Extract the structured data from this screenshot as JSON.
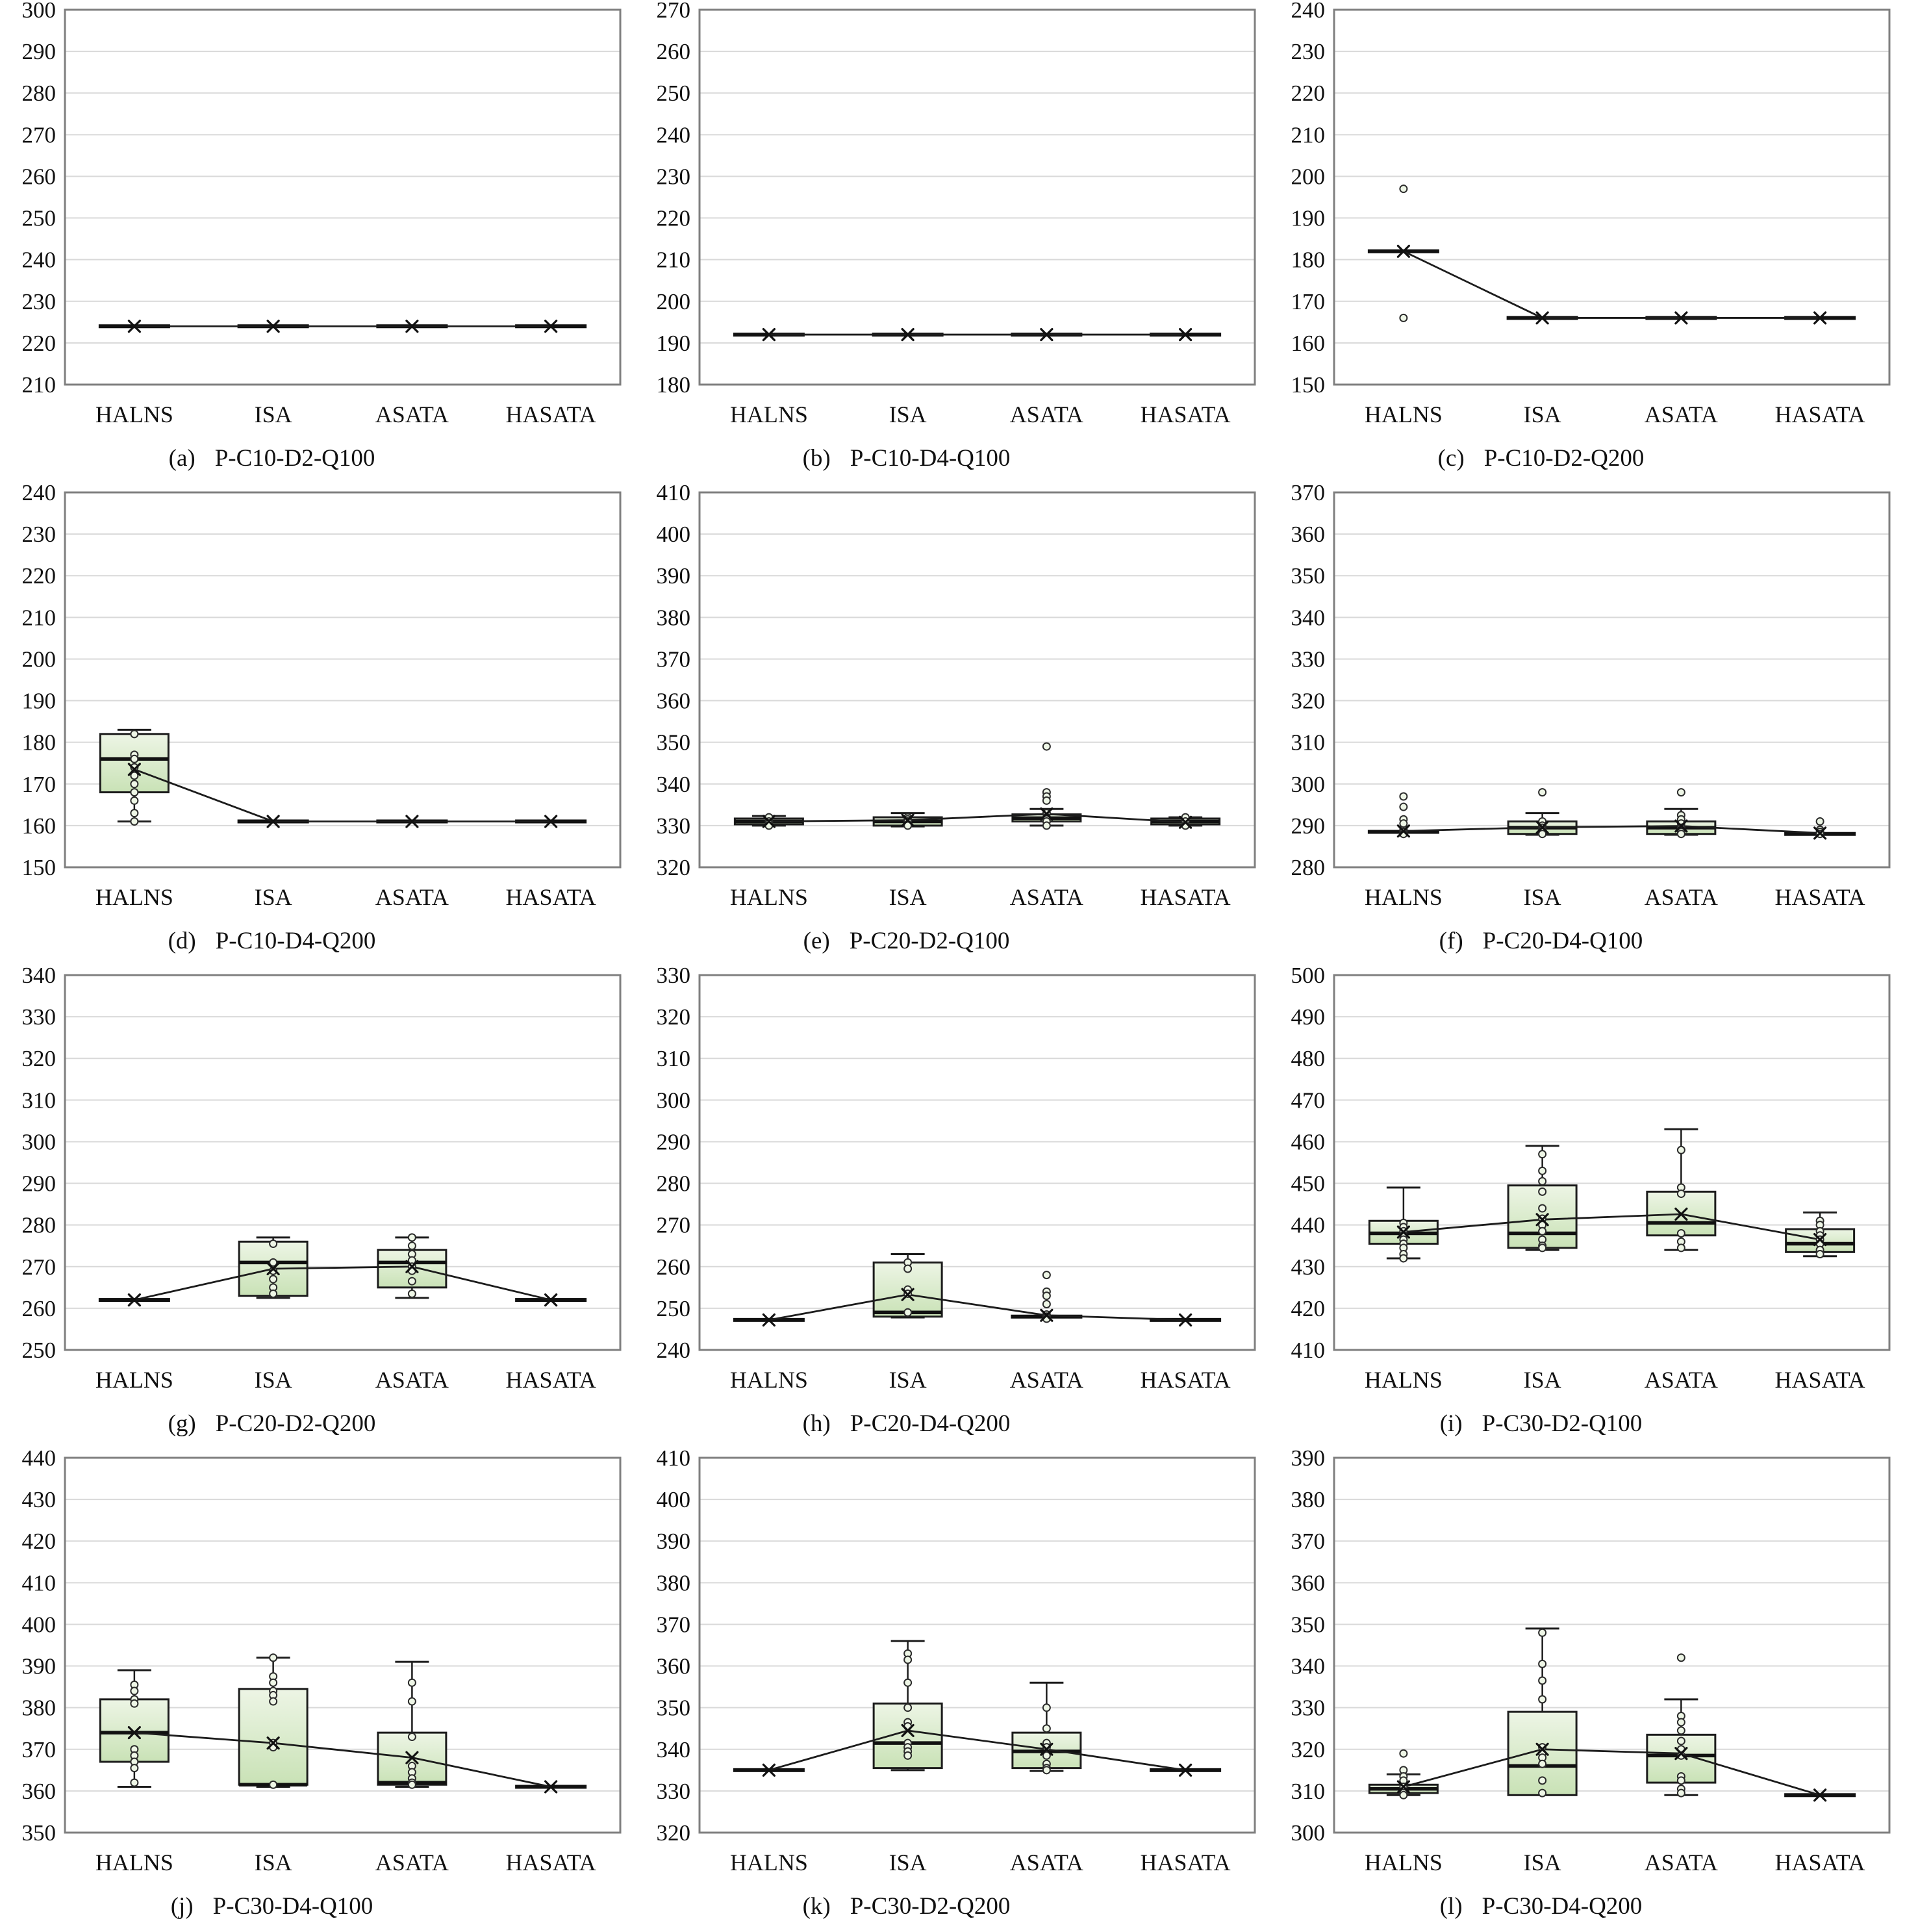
{
  "style": {
    "background": "#ffffff",
    "box_fill_top": "#edf5e5",
    "box_fill_bottom": "#c9e2b6",
    "box_stroke": "#1c1c1c",
    "median_color": "#111111",
    "grid_color": "#d9d9d9",
    "border_color": "#7f7f7f",
    "point_fill": "#eef6e6",
    "point_stroke": "#2b2b2b",
    "mean_line_color": "#1c1c1c",
    "text_color": "#111111"
  },
  "chart_data": [
    {
      "type": "boxplot",
      "id": "a",
      "caption_prefix": "(a)",
      "caption": "P-C10-D2-Q100",
      "ylim": [
        210,
        300
      ],
      "ytick_step": 10,
      "grid": true,
      "categories": [
        "HALNS",
        "ISA",
        "ASATA",
        "HASATA"
      ],
      "boxes": [
        {
          "type": "flat",
          "value": 224,
          "mean": 224
        },
        {
          "type": "flat",
          "value": 224,
          "mean": 224
        },
        {
          "type": "flat",
          "value": 224,
          "mean": 224
        },
        {
          "type": "flat",
          "value": 224,
          "mean": 224
        }
      ]
    },
    {
      "type": "boxplot",
      "id": "b",
      "caption_prefix": "(b)",
      "caption": "P-C10-D4-Q100",
      "ylim": [
        180,
        270
      ],
      "ytick_step": 10,
      "grid": true,
      "categories": [
        "HALNS",
        "ISA",
        "ASATA",
        "HASATA"
      ],
      "boxes": [
        {
          "type": "flat",
          "value": 192,
          "mean": 192
        },
        {
          "type": "flat",
          "value": 192,
          "mean": 192
        },
        {
          "type": "flat",
          "value": 192,
          "mean": 192
        },
        {
          "type": "flat",
          "value": 192,
          "mean": 192
        }
      ]
    },
    {
      "type": "boxplot",
      "id": "c",
      "caption_prefix": "(c)",
      "caption": "P-C10-D2-Q200",
      "ylim": [
        150,
        240
      ],
      "ytick_step": 10,
      "grid": true,
      "categories": [
        "HALNS",
        "ISA",
        "ASATA",
        "HASATA"
      ],
      "boxes": [
        {
          "type": "flat",
          "value": 182,
          "mean": 182,
          "outliers": [
            197,
            166
          ]
        },
        {
          "type": "flat",
          "value": 166,
          "mean": 166
        },
        {
          "type": "flat",
          "value": 166,
          "mean": 166
        },
        {
          "type": "flat",
          "value": 166,
          "mean": 166
        }
      ]
    },
    {
      "type": "boxplot",
      "id": "d",
      "caption_prefix": "(d)",
      "caption": "P-C10-D4-Q200",
      "ylim": [
        150,
        240
      ],
      "ytick_step": 10,
      "grid": true,
      "categories": [
        "HALNS",
        "ISA",
        "ASATA",
        "HASATA"
      ],
      "boxes": [
        {
          "type": "box",
          "q1": 168,
          "median": 176,
          "q3": 182,
          "whisker_low": 161,
          "whisker_high": 183,
          "mean": 173.5,
          "points": [
            182,
            177,
            176,
            174,
            172,
            170,
            168,
            166,
            163,
            161
          ]
        },
        {
          "type": "flat",
          "value": 161,
          "mean": 161
        },
        {
          "type": "flat",
          "value": 161,
          "mean": 161
        },
        {
          "type": "flat",
          "value": 161,
          "mean": 161
        }
      ]
    },
    {
      "type": "boxplot",
      "id": "e",
      "caption_prefix": "(e)",
      "caption": "P-C20-D2-Q100",
      "ylim": [
        320,
        410
      ],
      "ytick_step": 10,
      "grid": true,
      "categories": [
        "HALNS",
        "ISA",
        "ASATA",
        "HASATA"
      ],
      "boxes": [
        {
          "type": "box",
          "q1": 330.3,
          "median": 331,
          "q3": 331.7,
          "whisker_low": 330,
          "whisker_high": 332.3,
          "mean": 331,
          "points": [
            332,
            331,
            330.5,
            330
          ]
        },
        {
          "type": "box",
          "q1": 330,
          "median": 331,
          "q3": 332,
          "whisker_low": 329.8,
          "whisker_high": 333,
          "mean": 331.3,
          "points": [
            332,
            331.5,
            331,
            330
          ]
        },
        {
          "type": "box",
          "q1": 331,
          "median": 331.8,
          "q3": 332.7,
          "whisker_low": 330,
          "whisker_high": 334,
          "mean": 332.8,
          "outliers": [
            349,
            338,
            337,
            336
          ],
          "points": [
            333,
            332,
            331.5,
            331,
            330
          ]
        },
        {
          "type": "box",
          "q1": 330.3,
          "median": 331,
          "q3": 331.7,
          "whisker_low": 330,
          "whisker_high": 332,
          "mean": 330.8,
          "points": [
            332,
            331,
            330
          ]
        }
      ]
    },
    {
      "type": "boxplot",
      "id": "f",
      "caption_prefix": "(f)",
      "caption": "P-C20-D4-Q100",
      "ylim": [
        280,
        370
      ],
      "ytick_step": 10,
      "grid": true,
      "categories": [
        "HALNS",
        "ISA",
        "ASATA",
        "HASATA"
      ],
      "boxes": [
        {
          "type": "flat",
          "value": 288.5,
          "mean": 288.7,
          "outliers": [
            297,
            294.5,
            291.5,
            290.5
          ],
          "points": [
            289.5,
            289,
            288.5,
            288
          ]
        },
        {
          "type": "box",
          "q1": 288,
          "median": 289.5,
          "q3": 291,
          "whisker_low": 287.8,
          "whisker_high": 293,
          "mean": 289.6,
          "outliers": [
            298
          ],
          "points": [
            291,
            290,
            289.5,
            289,
            288.5,
            288
          ]
        },
        {
          "type": "box",
          "q1": 288,
          "median": 289.5,
          "q3": 291,
          "whisker_low": 287.8,
          "whisker_high": 294,
          "mean": 289.9,
          "outliers": [
            298
          ],
          "points": [
            292.5,
            291.5,
            290.5,
            289.5,
            289,
            288.5,
            288
          ]
        },
        {
          "type": "flat",
          "value": 288,
          "mean": 288.2,
          "outliers": [
            291
          ],
          "points": [
            289,
            288.5,
            288
          ]
        }
      ]
    },
    {
      "type": "boxplot",
      "id": "g",
      "caption_prefix": "(g)",
      "caption": "P-C20-D2-Q200",
      "ylim": [
        250,
        340
      ],
      "ytick_step": 10,
      "grid": true,
      "categories": [
        "HALNS",
        "ISA",
        "ASATA",
        "HASATA"
      ],
      "boxes": [
        {
          "type": "flat",
          "value": 262,
          "mean": 262
        },
        {
          "type": "box",
          "q1": 263,
          "median": 271,
          "q3": 276,
          "whisker_low": 262.5,
          "whisker_high": 277,
          "mean": 269.5,
          "points": [
            275.5,
            271,
            269,
            267,
            265,
            263.5
          ]
        },
        {
          "type": "box",
          "q1": 265,
          "median": 271,
          "q3": 274,
          "whisker_low": 262.5,
          "whisker_high": 277,
          "mean": 270,
          "points": [
            277,
            275,
            273,
            271.5,
            270,
            269,
            266.5,
            263.5
          ]
        },
        {
          "type": "flat",
          "value": 262,
          "mean": 262
        }
      ]
    },
    {
      "type": "boxplot",
      "id": "h",
      "caption_prefix": "(h)",
      "caption": "P-C20-D4-Q200",
      "ylim": [
        240,
        330
      ],
      "ytick_step": 10,
      "grid": true,
      "categories": [
        "HALNS",
        "ISA",
        "ASATA",
        "HASATA"
      ],
      "boxes": [
        {
          "type": "flat",
          "value": 247.2,
          "mean": 247.2
        },
        {
          "type": "box",
          "q1": 248,
          "median": 249,
          "q3": 261,
          "whisker_low": 247.8,
          "whisker_high": 263,
          "mean": 253.3,
          "points": [
            261,
            259.5,
            254.5,
            253.5,
            249
          ]
        },
        {
          "type": "flat",
          "value": 248,
          "mean": 248.3,
          "outliers": [
            258,
            254,
            253,
            251
          ],
          "points": [
            248.5,
            248,
            247.5
          ]
        },
        {
          "type": "flat",
          "value": 247.2,
          "mean": 247.2
        }
      ]
    },
    {
      "type": "boxplot",
      "id": "i",
      "caption_prefix": "(i)",
      "caption": "P-C30-D2-Q100",
      "ylim": [
        410,
        500
      ],
      "ytick_step": 10,
      "grid": true,
      "categories": [
        "HALNS",
        "ISA",
        "ASATA",
        "HASATA"
      ],
      "boxes": [
        {
          "type": "box",
          "q1": 435.5,
          "median": 438,
          "q3": 441,
          "whisker_low": 432,
          "whisker_high": 449,
          "mean": 438.3,
          "points": [
            440.5,
            439.5,
            438.5,
            437.5,
            436.5,
            435.5,
            434.5,
            433,
            432
          ]
        },
        {
          "type": "box",
          "q1": 434.5,
          "median": 438,
          "q3": 449.5,
          "whisker_low": 434,
          "whisker_high": 459,
          "mean": 441.3,
          "points": [
            457,
            453,
            450.5,
            448,
            444,
            441.5,
            440,
            438.5,
            436.5,
            435,
            434.5
          ]
        },
        {
          "type": "box",
          "q1": 437.5,
          "median": 440.5,
          "q3": 448,
          "whisker_low": 434,
          "whisker_high": 463,
          "mean": 442.6,
          "points": [
            458,
            449,
            447.5,
            438,
            436,
            434.5
          ]
        },
        {
          "type": "box",
          "q1": 433.5,
          "median": 435.5,
          "q3": 439,
          "whisker_low": 432.5,
          "whisker_high": 443,
          "mean": 436.5,
          "points": [
            441,
            440,
            438.5,
            437.5,
            436.5,
            435.5,
            434,
            433
          ]
        }
      ]
    },
    {
      "type": "boxplot",
      "id": "j",
      "caption_prefix": "(j)",
      "caption": "P-C30-D4-Q100",
      "ylim": [
        350,
        440
      ],
      "ytick_step": 10,
      "grid": true,
      "categories": [
        "HALNS",
        "ISA",
        "ASATA",
        "HASATA"
      ],
      "boxes": [
        {
          "type": "box",
          "q1": 367,
          "median": 374,
          "q3": 382,
          "whisker_low": 361,
          "whisker_high": 389,
          "mean": 374,
          "points": [
            385.5,
            384,
            382,
            381,
            370,
            368.5,
            367,
            365.5,
            362
          ]
        },
        {
          "type": "box",
          "q1": 361.5,
          "median": 361.5,
          "q3": 384.5,
          "whisker_low": 361,
          "whisker_high": 392,
          "mean": 371.5,
          "points": [
            392,
            387.5,
            386,
            384,
            383,
            381.5,
            371.5,
            370.5,
            361.5
          ]
        },
        {
          "type": "box",
          "q1": 361.5,
          "median": 362,
          "q3": 374,
          "whisker_low": 361,
          "whisker_high": 391,
          "mean": 368,
          "points": [
            386,
            381.5,
            373,
            366,
            364.5,
            363,
            362,
            361.5
          ]
        },
        {
          "type": "flat",
          "value": 361,
          "mean": 361
        }
      ]
    },
    {
      "type": "boxplot",
      "id": "k",
      "caption_prefix": "(k)",
      "caption": "P-C30-D2-Q200",
      "ylim": [
        320,
        410
      ],
      "ytick_step": 10,
      "grid": true,
      "categories": [
        "HALNS",
        "ISA",
        "ASATA",
        "HASATA"
      ],
      "boxes": [
        {
          "type": "flat",
          "value": 335,
          "mean": 335
        },
        {
          "type": "box",
          "q1": 335.5,
          "median": 341.5,
          "q3": 351,
          "whisker_low": 335,
          "whisker_high": 366,
          "mean": 344.5,
          "points": [
            363,
            361.5,
            356,
            350,
            346.5,
            345.5,
            341.5,
            340.5,
            339.5,
            338.5
          ]
        },
        {
          "type": "box",
          "q1": 335.5,
          "median": 339.5,
          "q3": 344,
          "whisker_low": 334.8,
          "whisker_high": 356,
          "mean": 340,
          "points": [
            350,
            345,
            341.5,
            340.5,
            338.5,
            336.5,
            335.5,
            335
          ]
        },
        {
          "type": "flat",
          "value": 335,
          "mean": 335
        }
      ]
    },
    {
      "type": "boxplot",
      "id": "l",
      "caption_prefix": "(l)",
      "caption": "P-C30-D4-Q200",
      "ylim": [
        300,
        390
      ],
      "ytick_step": 10,
      "grid": true,
      "categories": [
        "HALNS",
        "ISA",
        "ASATA",
        "HASATA"
      ],
      "boxes": [
        {
          "type": "box",
          "q1": 309.5,
          "median": 310.5,
          "q3": 311.5,
          "whisker_low": 309,
          "whisker_high": 314,
          "mean": 311,
          "outliers": [
            319
          ],
          "points": [
            315,
            313.5,
            312.5,
            311,
            310,
            309.5,
            309
          ]
        },
        {
          "type": "box",
          "q1": 309,
          "median": 316,
          "q3": 329,
          "whisker_low": 309,
          "whisker_high": 349,
          "mean": 320,
          "points": [
            348,
            340.5,
            336.5,
            332,
            320.5,
            319,
            318,
            316.5,
            312.5,
            309.5
          ]
        },
        {
          "type": "box",
          "q1": 312,
          "median": 318.5,
          "q3": 323.5,
          "whisker_low": 309,
          "whisker_high": 332,
          "mean": 319,
          "outliers": [
            342
          ],
          "points": [
            328,
            326.5,
            324.5,
            322,
            320,
            318.5,
            313.5,
            312.5,
            310.5,
            309.5
          ]
        },
        {
          "type": "flat",
          "value": 309,
          "mean": 309
        }
      ]
    }
  ]
}
